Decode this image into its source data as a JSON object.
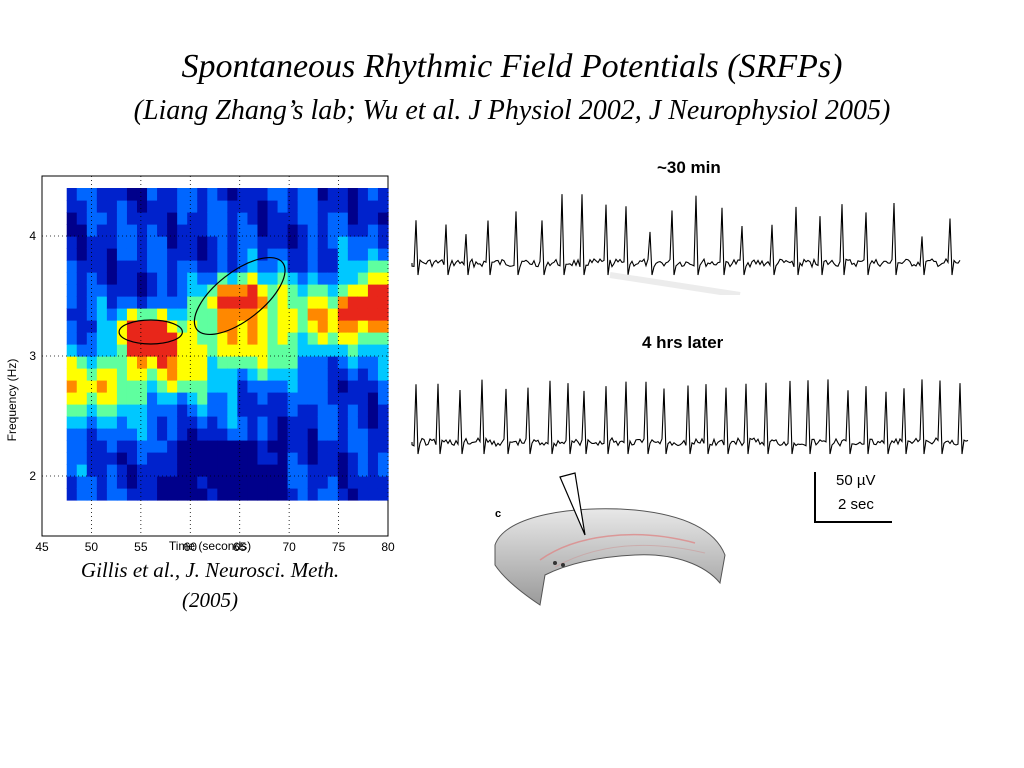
{
  "slide": {
    "title_line1": "Spontaneous Rhythmic Field Potentials (SRFPs)",
    "title_line2": "(Liang Zhang’s lab; Wu et al. J Physiol 2002, J Neurophysiol 2005)",
    "caption_line1": "Gillis et al., J. Neurosci. Meth.",
    "caption_line2": "(2005)"
  },
  "chart_data": [
    {
      "type": "heatmap",
      "xlabel": "Time (seconds)",
      "ylabel": "Frequency (Hz)",
      "xlim": [
        45,
        80
      ],
      "ylim": [
        1.5,
        4.5
      ],
      "x_ticks": [
        "45",
        "50",
        "55",
        "60",
        "65",
        "70",
        "75",
        "80"
      ],
      "y_ticks": [
        "2",
        "3",
        "4"
      ],
      "grid": "dotted",
      "x_range_data": [
        47.5,
        80
      ],
      "y_range_data": [
        1.8,
        4.4
      ],
      "colormap": [
        "#00008b",
        "#0022cc",
        "#0066ff",
        "#00c8ff",
        "#5fff9f",
        "#ffff00",
        "#ff8800",
        "#e8261a"
      ],
      "peaks": [
        {
          "time": 56,
          "freq": 3.2,
          "intensity": 1.0
        },
        {
          "time": 65,
          "freq": 3.5,
          "intensity": 1.0
        },
        {
          "time": 79,
          "freq": 3.4,
          "intensity": 0.85
        }
      ]
    },
    {
      "type": "line",
      "label": "~30 min",
      "trace_color": "#000000"
    },
    {
      "type": "line",
      "label": "4 hrs later",
      "trace_color": "#000000"
    }
  ],
  "scale_bar": {
    "amplitude": "50 µV",
    "time": "2 sec"
  },
  "schematic": {
    "panel_letter": "c"
  }
}
